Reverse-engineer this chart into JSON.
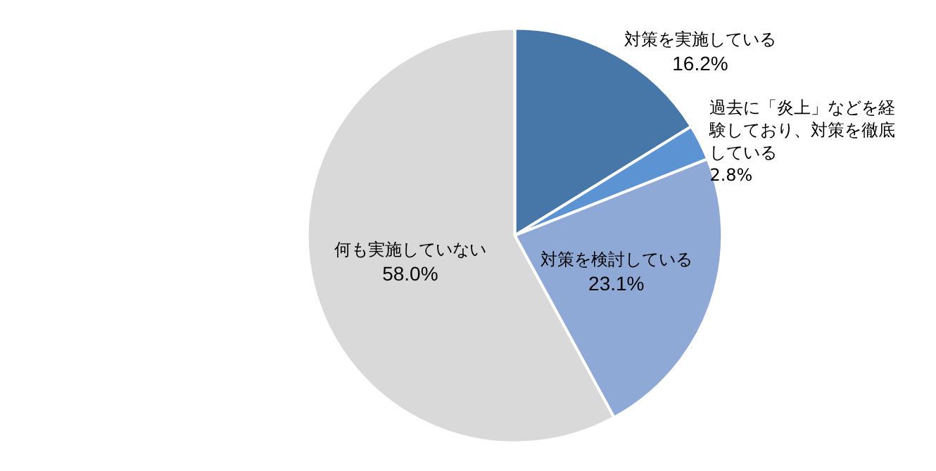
{
  "chart_data": {
    "type": "pie",
    "categories": [
      "対策を実施している",
      "過去に「炎上」などを経験しており、対策を徹底している",
      "対策を検討している",
      "何も実施していない"
    ],
    "values": [
      16.2,
      2.8,
      23.1,
      58.0
    ],
    "colors": [
      "#4677a8",
      "#5b93d3",
      "#8fa9d6",
      "#d9d9d9"
    ],
    "value_labels": [
      "16.2%",
      "2.8%",
      "23.1%",
      "58.0%"
    ],
    "legend": false
  }
}
